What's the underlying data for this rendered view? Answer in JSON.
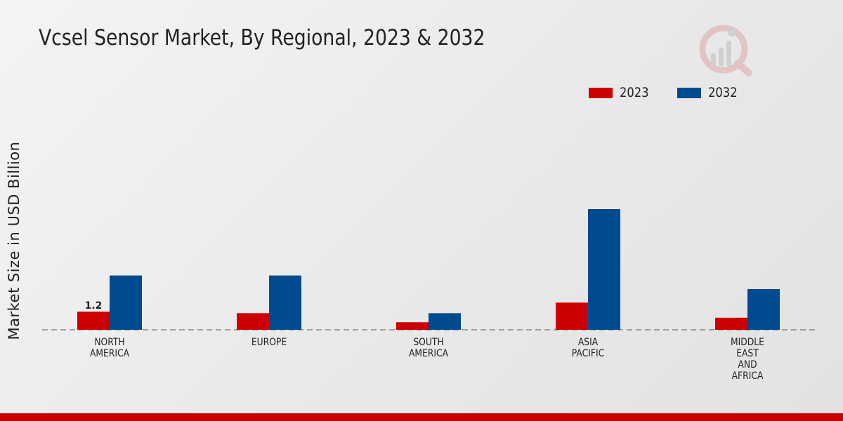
{
  "chart_data": {
    "type": "bar",
    "title": "Vcsel Sensor Market, By Regional, 2023 & 2032",
    "xlabel": "",
    "ylabel": "Market Size in USD Billion",
    "categories": [
      "NORTH\nAMERICA",
      "EUROPE",
      "SOUTH\nAMERICA",
      "ASIA\nPACIFIC",
      "MIDDLE\nEAST\nAND\nAFRICA"
    ],
    "series": [
      {
        "name": "2023",
        "color": "#cc0000",
        "values": [
          1.2,
          1.1,
          0.5,
          1.8,
          0.8
        ]
      },
      {
        "name": "2032",
        "color": "#004a8f",
        "values": [
          3.6,
          3.6,
          1.1,
          8.0,
          2.7
        ]
      }
    ],
    "data_labels": [
      {
        "series": "2023",
        "category_index": 0,
        "text": "1.2"
      }
    ],
    "ylim": [
      0,
      10
    ],
    "grid": false,
    "legend_position": "top-right"
  },
  "branding": {
    "accent_color": "#cc0000",
    "logo_icon": "market-research-logo-icon"
  }
}
